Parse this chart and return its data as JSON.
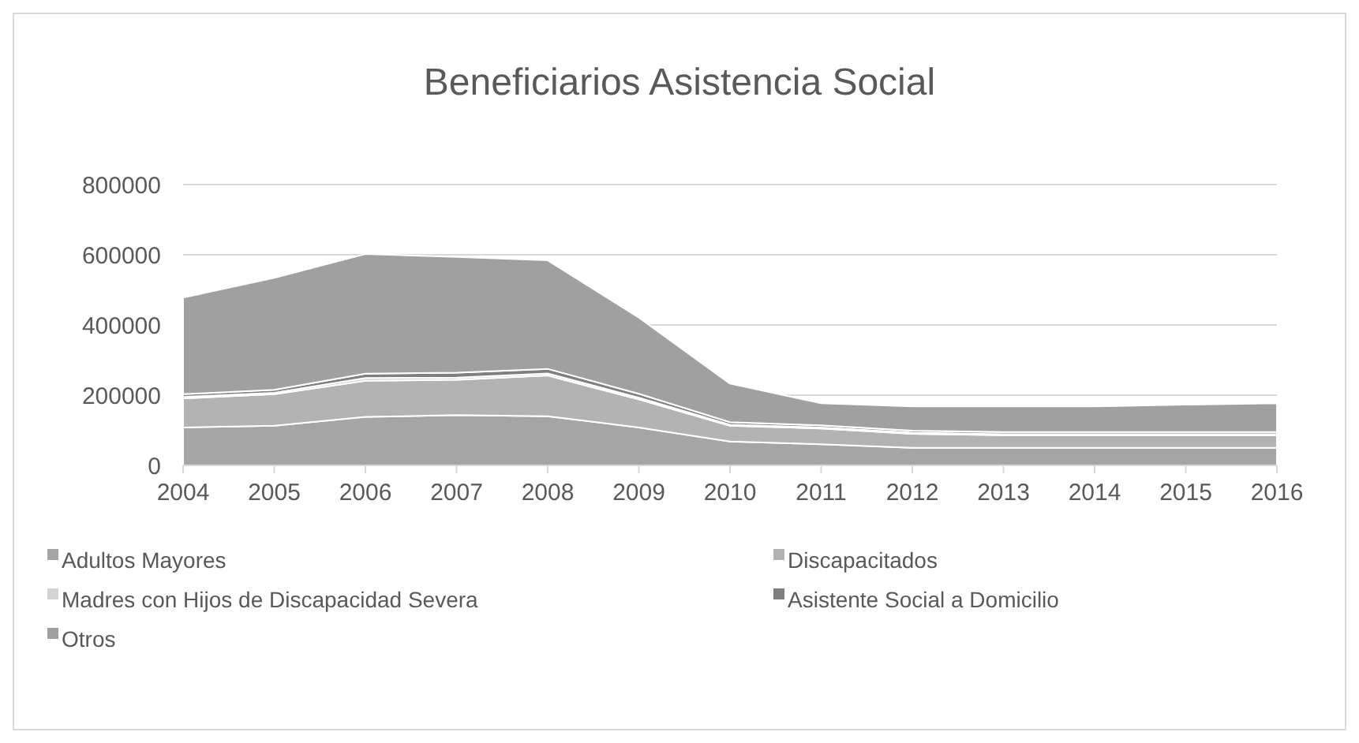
{
  "chart_data": {
    "type": "area",
    "stacked": true,
    "title": "Beneficiarios Asistencia Social",
    "categories": [
      "2004",
      "2005",
      "2006",
      "2007",
      "2008",
      "2009",
      "2010",
      "2011",
      "2012",
      "2013",
      "2014",
      "2015",
      "2016"
    ],
    "series": [
      {
        "name": "Adultos Mayores",
        "color": "#a5a5a5",
        "values": [
          108000,
          113000,
          138000,
          143000,
          140000,
          108000,
          68000,
          60000,
          50000,
          50000,
          50000,
          50000,
          50000
        ]
      },
      {
        "name": "Discapacitados",
        "color": "#b3b3b3",
        "values": [
          83000,
          90000,
          103000,
          101000,
          116000,
          80000,
          45000,
          45000,
          40000,
          36000,
          36000,
          36000,
          36000
        ]
      },
      {
        "name": "Madres con Hijos de Discapacidad Severa",
        "color": "#d4d4d4",
        "values": [
          4000,
          4000,
          8000,
          6000,
          6000,
          5000,
          3000,
          3000,
          3000,
          3000,
          3000,
          3000,
          3000
        ]
      },
      {
        "name": "Asistente Social a Domicilio",
        "color": "#7f7f7f",
        "values": [
          8000,
          8000,
          12000,
          14000,
          13000,
          11000,
          7000,
          6000,
          6000,
          6000,
          6000,
          6000,
          6000
        ]
      },
      {
        "name": "Otros",
        "color": "#a0a0a0",
        "values": [
          275000,
          319000,
          341000,
          330000,
          309000,
          217000,
          110000,
          63000,
          69000,
          73000,
          73000,
          78000,
          82000
        ]
      }
    ],
    "ylim": [
      0,
      800000
    ],
    "yticks": [
      0,
      200000,
      400000,
      600000,
      800000
    ],
    "grid": "y",
    "legend": "bottom"
  }
}
